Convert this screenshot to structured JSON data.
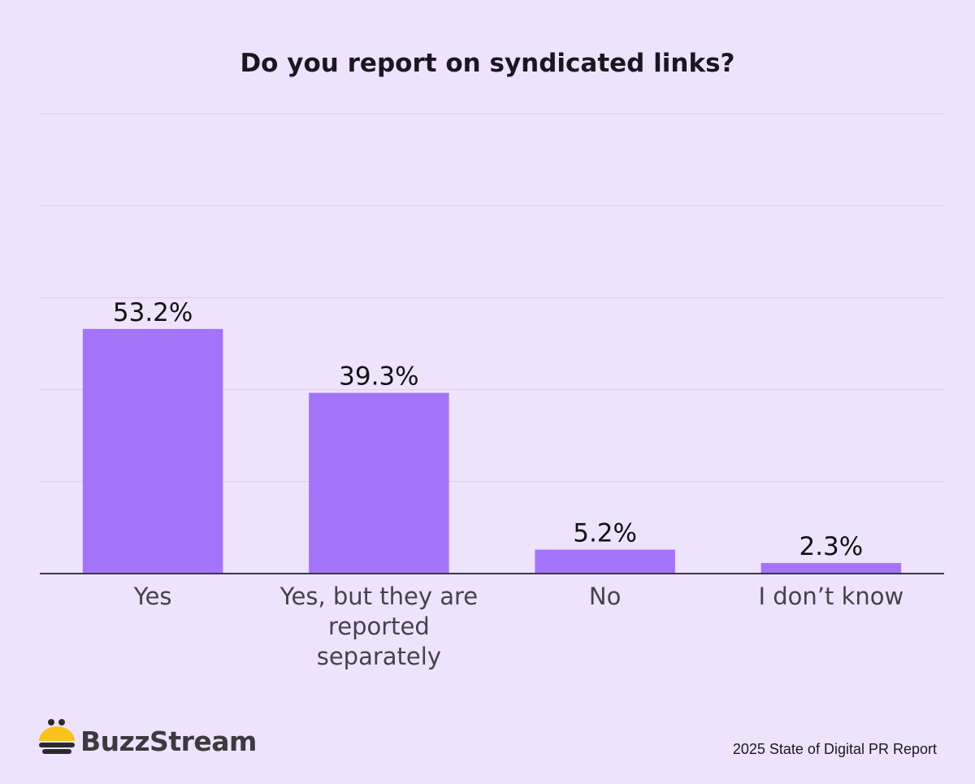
{
  "chart_data": {
    "type": "bar",
    "title": "Do you report on syndicated links?",
    "categories": [
      "Yes",
      "Yes, but they are reported separately",
      "No",
      "I don’t know"
    ],
    "values": [
      53.2,
      39.3,
      5.2,
      2.3
    ],
    "value_labels": [
      "53.2%",
      "39.3%",
      "5.2%",
      "2.3%"
    ],
    "color": "#a374f9",
    "ylim": [
      0,
      100
    ],
    "yticks": [
      0,
      20,
      40,
      60,
      80,
      100
    ],
    "grid": true,
    "brand": "BuzzStream",
    "source": "2025 State of Digital PR Report"
  }
}
